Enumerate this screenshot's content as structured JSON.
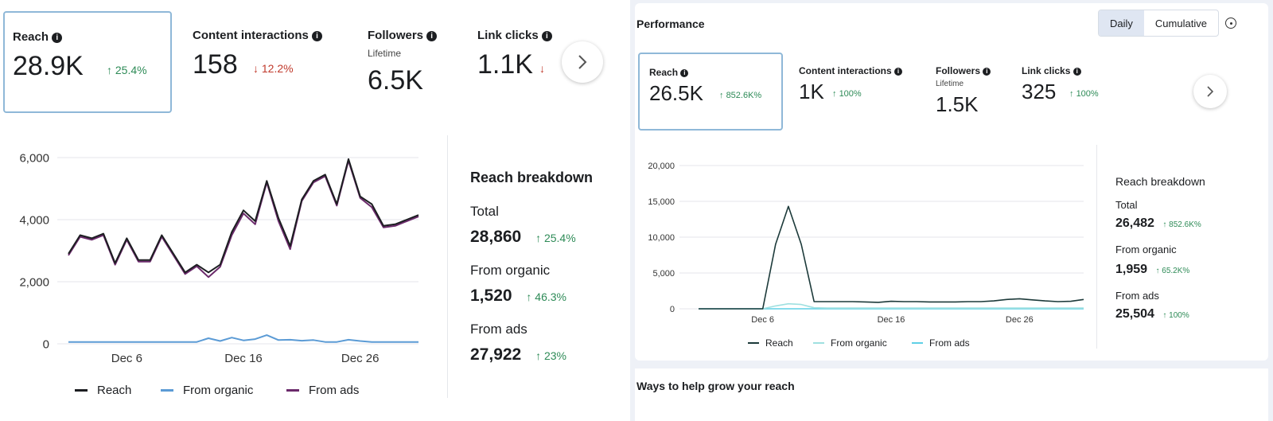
{
  "left": {
    "metrics": [
      {
        "title": "Reach",
        "value": "28.9K",
        "change": "25.4%",
        "direction": "up"
      },
      {
        "title": "Content interactions",
        "value": "158",
        "change": "12.2%",
        "direction": "down"
      },
      {
        "title": "Followers",
        "subtitle": "Lifetime",
        "value": "6.5K"
      },
      {
        "title": "Link clicks",
        "value": "1.1K"
      }
    ],
    "next_icon": "chevron-right-icon",
    "breakdown": {
      "title": "Reach breakdown",
      "items": [
        {
          "label": "Total",
          "value": "28,860",
          "change": "25.4%"
        },
        {
          "label": "From organic",
          "value": "1,520",
          "change": "46.3%"
        },
        {
          "label": "From ads",
          "value": "27,922",
          "change": "23%"
        }
      ]
    },
    "legend": [
      {
        "label": "Reach",
        "color": "#1c1e21"
      },
      {
        "label": "From organic",
        "color": "#5b9bd5"
      },
      {
        "label": "From ads",
        "color": "#6b2a6b"
      }
    ]
  },
  "right": {
    "title": "Performance",
    "toggle": {
      "daily": "Daily",
      "cumulative": "Cumulative"
    },
    "metrics": [
      {
        "title": "Reach",
        "value": "26.5K",
        "change": "852.6K%"
      },
      {
        "title": "Content interactions",
        "value": "1K",
        "change": "100%"
      },
      {
        "title": "Followers",
        "subtitle": "Lifetime",
        "value": "1.5K"
      },
      {
        "title": "Link clicks",
        "value": "325",
        "change": "100%"
      }
    ],
    "breakdown": {
      "title": "Reach breakdown",
      "items": [
        {
          "label": "Total",
          "value": "26,482",
          "change": "852.6K%"
        },
        {
          "label": "From organic",
          "value": "1,959",
          "change": "65.2K%"
        },
        {
          "label": "From ads",
          "value": "25,504",
          "change": "100%"
        }
      ]
    },
    "legend": [
      {
        "label": "Reach",
        "color": "#1c3a3a"
      },
      {
        "label": "From organic",
        "color": "#9fe0e0"
      },
      {
        "label": "From ads",
        "color": "#5fd0e6"
      }
    ],
    "bottom_title": "Ways to help grow your reach"
  },
  "colors": {
    "up": "#2e8b57",
    "down": "#c0392b",
    "accent_border": "#8fb8d8"
  },
  "chart_data": [
    {
      "type": "line",
      "title": "",
      "ylim": [
        0,
        6000
      ],
      "yticks": [
        "0",
        "2,000",
        "4,000",
        "6,000"
      ],
      "xticks": [
        "Dec 6",
        "Dec 16",
        "Dec 26"
      ],
      "xtick_index": [
        5,
        15,
        25
      ],
      "series": [
        {
          "name": "Reach",
          "color": "#1c1e21",
          "values": [
            2900,
            3500,
            3400,
            3550,
            2600,
            3400,
            2700,
            2700,
            3500,
            2900,
            2300,
            2550,
            2300,
            2550,
            3600,
            4300,
            3950,
            5250,
            4050,
            3150,
            4650,
            5250,
            5450,
            4500,
            5950,
            4750,
            4500,
            3800,
            3850,
            4000,
            4150
          ]
        },
        {
          "name": "From organic",
          "color": "#5b9bd5",
          "values": [
            60,
            60,
            60,
            60,
            60,
            60,
            60,
            60,
            60,
            60,
            60,
            60,
            180,
            90,
            200,
            110,
            150,
            280,
            120,
            130,
            100,
            120,
            60,
            60,
            130,
            90,
            60,
            60,
            60,
            60,
            60
          ]
        },
        {
          "name": "From ads",
          "color": "#6b2a6b",
          "values": [
            2850,
            3450,
            3350,
            3500,
            2550,
            3350,
            2650,
            2650,
            3450,
            2850,
            2250,
            2500,
            2150,
            2480,
            3500,
            4200,
            3850,
            5200,
            3950,
            3050,
            4600,
            5200,
            5400,
            4450,
            5900,
            4700,
            4400,
            3750,
            3800,
            3950,
            4100
          ]
        }
      ]
    },
    {
      "type": "line",
      "title": "",
      "ylim": [
        0,
        20000
      ],
      "yticks": [
        "0",
        "5,000",
        "10,000",
        "15,000",
        "20,000"
      ],
      "xticks": [
        "Dec 6",
        "Dec 16",
        "Dec 26"
      ],
      "xtick_index": [
        5,
        15,
        25
      ],
      "series": [
        {
          "name": "Reach",
          "color": "#1c3a3a",
          "values": [
            0,
            0,
            0,
            0,
            0,
            0,
            9000,
            14300,
            9000,
            1000,
            1000,
            1000,
            1000,
            950,
            900,
            1050,
            1000,
            1000,
            950,
            950,
            950,
            1000,
            1000,
            1100,
            1300,
            1400,
            1250,
            1100,
            1000,
            1050,
            1300
          ]
        },
        {
          "name": "From organic",
          "color": "#9fe0e0",
          "values": [
            0,
            0,
            0,
            0,
            0,
            0,
            400,
            700,
            600,
            150,
            100,
            100,
            100,
            100,
            100,
            100,
            100,
            100,
            100,
            100,
            100,
            100,
            100,
            100,
            100,
            100,
            100,
            100,
            100,
            100,
            100
          ]
        },
        {
          "name": "From ads",
          "color": "#5fd0e6",
          "values": [
            0,
            0,
            0,
            0,
            0,
            0,
            0,
            0,
            0,
            0,
            0,
            0,
            0,
            0,
            0,
            0,
            0,
            0,
            0,
            0,
            0,
            0,
            0,
            0,
            0,
            0,
            0,
            0,
            0,
            0,
            0
          ]
        }
      ]
    }
  ]
}
